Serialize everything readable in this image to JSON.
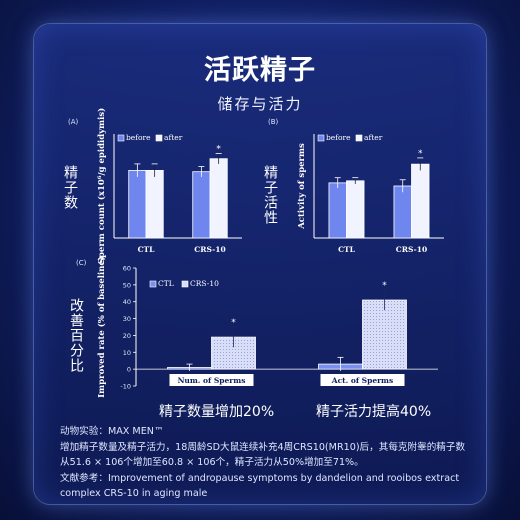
{
  "header": {
    "title": "活跃精子",
    "subtitle": "储存与活力"
  },
  "side_labels": {
    "a": "精子数",
    "b": "精子活性",
    "c": "改善百分比"
  },
  "captions": {
    "left": "精子数量增加20%",
    "right": "精子活力提高40%"
  },
  "notes": {
    "line1": "动物实验：MAX MEN™",
    "line2": "增加精子数量及精子活力，18周龄SD大鼠连续补充4周CRS10(MR10)后，其每克附睾的精子数",
    "line3": "从51.6 × 106个增加至60.8 × 106个，精子活力从50%增加至71%。",
    "line4": "文献参考：Improvement of andropause symptoms by dandelion and rooibos extract",
    "line5": "complex CRS-10 in aging male"
  },
  "colors": {
    "before_fill": "#6f86ee",
    "after_fill": "#f1f3ff",
    "ctl_fill": "#7a90f0",
    "crs_fill": "#d9def8",
    "axis": "#ffffff"
  },
  "chart_data": [
    {
      "panel": "(A)",
      "type": "bar",
      "ylabel": "Sperm count (x10⁶/g epididymis)",
      "categories": [
        "CTL",
        "CRS-10"
      ],
      "series": [
        {
          "name": "before",
          "values": [
            52,
            51
          ],
          "errors": [
            5,
            4
          ]
        },
        {
          "name": "after",
          "values": [
            52,
            61
          ],
          "errors": [
            5,
            4
          ]
        }
      ],
      "significance": [
        {
          "category": "CRS-10",
          "series": "after",
          "mark": "*"
        }
      ],
      "ylim": [
        0,
        80
      ],
      "legend": "top"
    },
    {
      "panel": "(B)",
      "type": "bar",
      "ylabel": "Activity of sperms",
      "categories": [
        "CTL",
        "CRS-10"
      ],
      "series": [
        {
          "name": "before",
          "values": [
            53,
            50
          ],
          "errors": [
            5,
            6
          ]
        },
        {
          "name": "after",
          "values": [
            55,
            71
          ],
          "errors": [
            3,
            6
          ]
        }
      ],
      "significance": [
        {
          "category": "CRS-10",
          "series": "after",
          "mark": "*"
        }
      ],
      "ylim": [
        0,
        100
      ],
      "legend": "top"
    },
    {
      "panel": "(C)",
      "type": "bar",
      "ylabel": "Improved rate (% of baseline)",
      "categories": [
        "Num. of Sperms",
        "Act. of Sperms"
      ],
      "yticks": [
        -10,
        0,
        10,
        20,
        30,
        40,
        50,
        60
      ],
      "ylim": [
        -10,
        60
      ],
      "series": [
        {
          "name": "CTL",
          "values": [
            1,
            3
          ],
          "errors": [
            2,
            4
          ]
        },
        {
          "name": "CRS-10",
          "values": [
            19,
            41
          ],
          "errors": [
            6,
            6
          ]
        }
      ],
      "significance": [
        {
          "category": "Num. of Sperms",
          "series": "CRS-10",
          "mark": "*"
        },
        {
          "category": "Act. of Sperms",
          "series": "CRS-10",
          "mark": "*"
        }
      ],
      "legend": "top-left"
    }
  ]
}
